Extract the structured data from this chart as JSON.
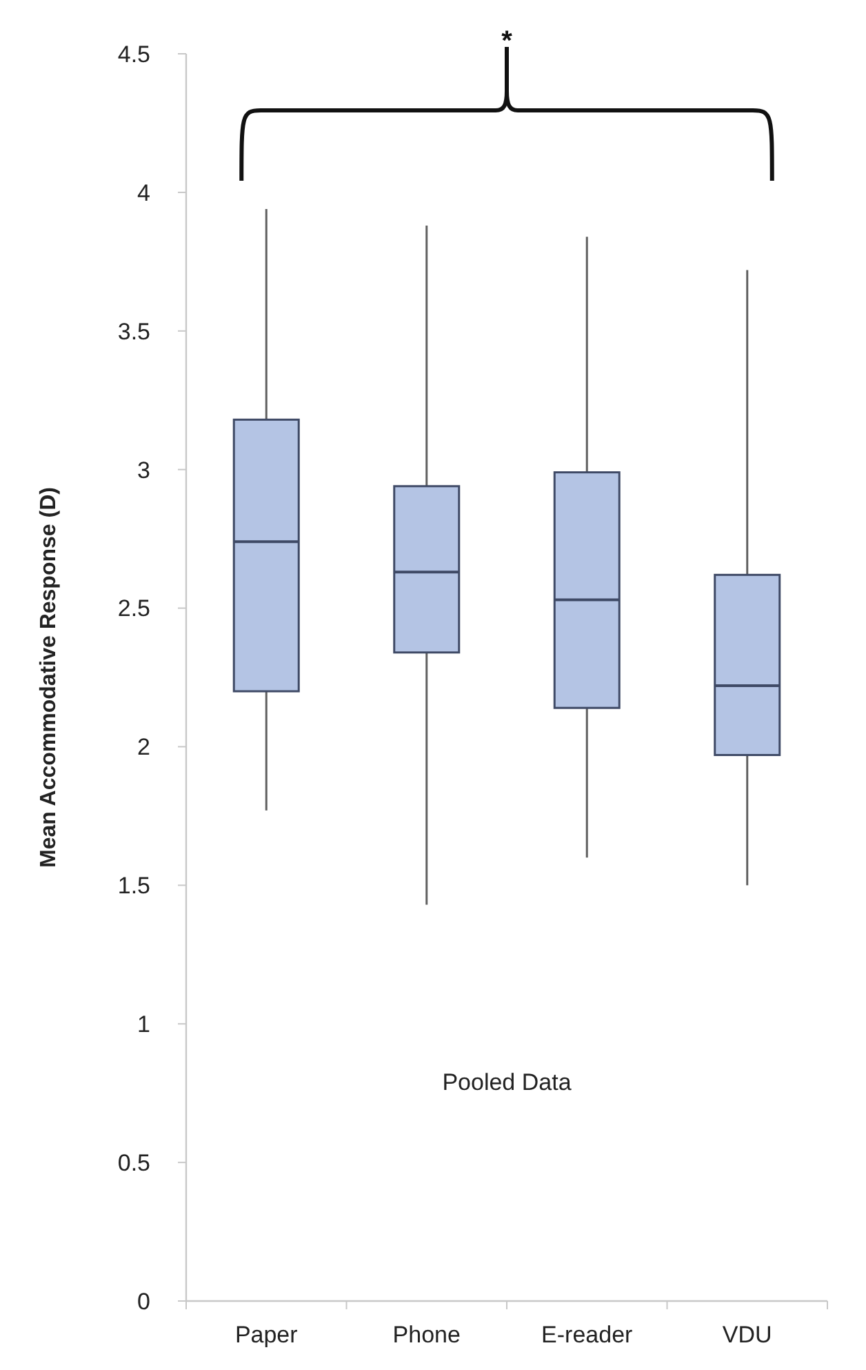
{
  "chart_data": {
    "type": "box",
    "ylabel": "Mean Accommodative Response (D)",
    "categories": [
      "Paper",
      "Phone",
      "E-reader",
      "VDU"
    ],
    "boxes": [
      {
        "low": 1.77,
        "q1": 2.2,
        "median": 2.74,
        "q3": 3.18,
        "high": 3.94
      },
      {
        "low": 1.43,
        "q1": 2.34,
        "median": 2.63,
        "q3": 2.94,
        "high": 3.88
      },
      {
        "low": 1.6,
        "q1": 2.14,
        "median": 2.53,
        "q3": 2.99,
        "high": 3.84
      },
      {
        "low": 1.5,
        "q1": 1.97,
        "median": 2.22,
        "q3": 2.62,
        "high": 3.72
      }
    ],
    "color": "#b4c4e4",
    "ylim": [
      0,
      4.5
    ],
    "yticks": [
      0,
      0.5,
      1,
      1.5,
      2,
      2.5,
      3,
      3.5,
      4,
      4.5
    ],
    "grid": false,
    "annotations": [
      "*",
      "Pooled Data"
    ]
  }
}
